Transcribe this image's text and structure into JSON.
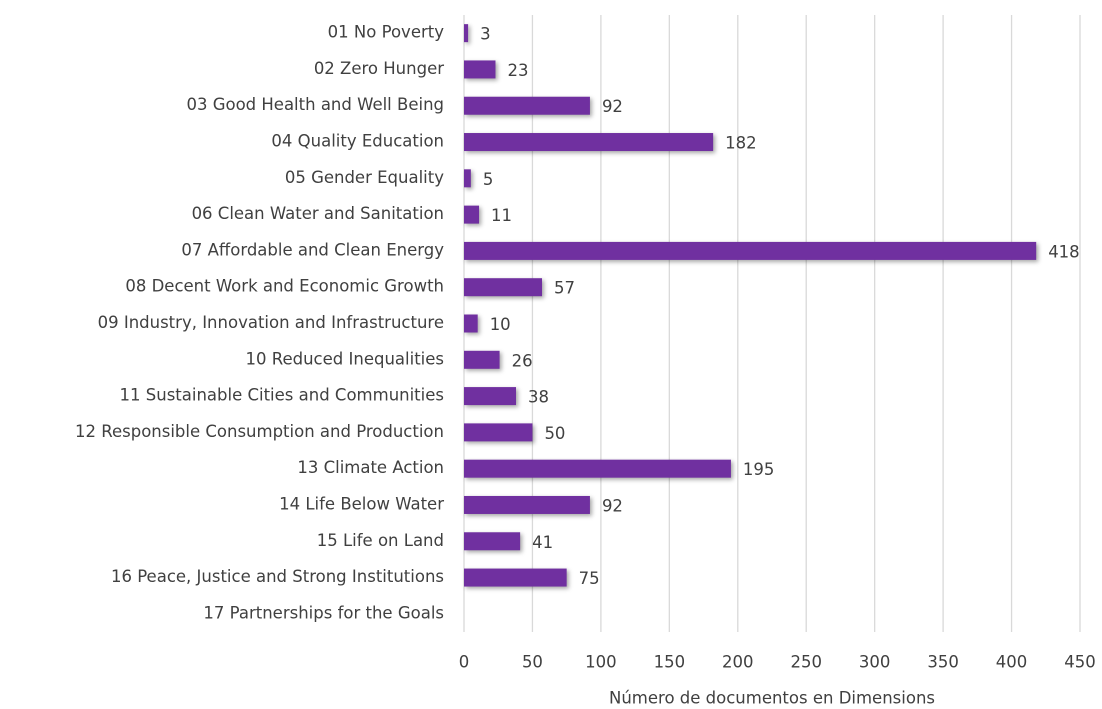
{
  "chart_data": {
    "type": "barh",
    "categories": [
      "01 No Poverty",
      "02 Zero Hunger",
      "03 Good Health and Well Being",
      "04 Quality Education",
      "05 Gender Equality",
      "06 Clean Water and Sanitation",
      "07 Affordable and Clean Energy",
      "08 Decent Work and Economic Growth",
      "09 Industry, Innovation and Infrastructure",
      "10 Reduced Inequalities",
      "11 Sustainable Cities and Communities",
      "12 Responsible Consumption and Production",
      "13 Climate Action",
      "14 Life Below Water",
      "15 Life on Land",
      "16 Peace, Justice and Strong Institutions",
      "17 Partnerships for the Goals"
    ],
    "values": [
      3,
      23,
      92,
      182,
      5,
      11,
      418,
      57,
      10,
      26,
      38,
      50,
      195,
      92,
      41,
      75,
      null
    ],
    "color": "#7030a0",
    "xlabel": "Número de documentos en Dimensions",
    "xlim": [
      0,
      450
    ],
    "xticks": [
      0,
      50,
      100,
      150,
      200,
      250,
      300,
      350,
      400,
      450
    ],
    "grid": true
  }
}
